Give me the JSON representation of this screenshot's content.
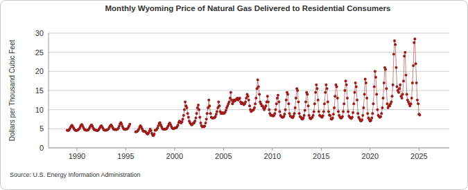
{
  "chart_data": {
    "type": "line",
    "title": "Monthly Wyoming Price of Natural Gas Delivered to Residential Consumers",
    "y_label": "Dollars per Thousand Cubic Feet",
    "source": "Source: U.S. Energy Information Administration",
    "color": "#9b1c1c",
    "marker": "circle",
    "grid": true,
    "xlim": [
      1987.1,
      2028.1
    ],
    "xticks": [
      1990,
      1995,
      2000,
      2005,
      2010,
      2015,
      2020,
      2025
    ],
    "ylim": [
      0,
      30
    ],
    "yticks": [
      0,
      5,
      10,
      15,
      20,
      25,
      30
    ],
    "x": [
      1989.0,
      1989.08,
      1989.17,
      1989.25,
      1989.33,
      1989.42,
      1989.5,
      1989.58,
      1989.67,
      1989.75,
      1989.83,
      1989.92,
      1990.0,
      1990.08,
      1990.17,
      1990.25,
      1990.33,
      1990.42,
      1990.5,
      1990.58,
      1990.67,
      1990.75,
      1990.83,
      1990.92,
      1991.0,
      1991.08,
      1991.17,
      1991.25,
      1991.33,
      1991.42,
      1991.5,
      1991.58,
      1991.67,
      1991.75,
      1991.83,
      1991.92,
      1992.0,
      1992.08,
      1992.17,
      1992.25,
      1992.33,
      1992.42,
      1992.5,
      1992.58,
      1992.67,
      1992.75,
      1992.83,
      1992.92,
      1993.0,
      1993.08,
      1993.17,
      1993.25,
      1993.33,
      1993.42,
      1993.5,
      1993.58,
      1993.67,
      1993.75,
      1993.83,
      1993.92,
      1994.0,
      1994.08,
      1994.17,
      1994.25,
      1994.33,
      1994.42,
      1994.5,
      1994.58,
      1994.67,
      1994.75,
      1994.83,
      1994.92,
      1995.0,
      1995.08,
      1995.17,
      1995.25,
      1995.33,
      1995.42,
      1995.5,
      1995.58,
      1995.67,
      1995.75,
      1995.83,
      1995.92,
      1996.0,
      1996.08,
      1996.17,
      1996.25,
      1996.33,
      1996.42,
      1996.5,
      1996.58,
      1996.67,
      1996.75,
      1996.83,
      1996.92,
      1997.0,
      1997.08,
      1997.17,
      1997.25,
      1997.33,
      1997.42,
      1997.5,
      1997.58,
      1997.67,
      1997.75,
      1997.83,
      1997.92,
      1998.0,
      1998.08,
      1998.17,
      1998.25,
      1998.33,
      1998.42,
      1998.5,
      1998.58,
      1998.67,
      1998.75,
      1998.83,
      1998.92,
      1999.0,
      1999.08,
      1999.17,
      1999.25,
      1999.33,
      1999.42,
      1999.5,
      1999.58,
      1999.67,
      1999.75,
      1999.83,
      1999.92,
      2000.0,
      2000.08,
      2000.17,
      2000.25,
      2000.33,
      2000.42,
      2000.5,
      2000.58,
      2000.67,
      2000.75,
      2000.83,
      2000.92,
      2001.0,
      2001.08,
      2001.17,
      2001.25,
      2001.33,
      2001.42,
      2001.5,
      2001.58,
      2001.67,
      2001.75,
      2001.83,
      2001.92,
      2002.0,
      2002.08,
      2002.17,
      2002.25,
      2002.33,
      2002.42,
      2002.5,
      2002.58,
      2002.67,
      2002.75,
      2002.83,
      2002.92,
      2003.0,
      2003.08,
      2003.17,
      2003.25,
      2003.33,
      2003.42,
      2003.5,
      2003.58,
      2003.67,
      2003.75,
      2003.83,
      2003.92,
      2004.0,
      2004.08,
      2004.17,
      2004.25,
      2004.33,
      2004.42,
      2004.5,
      2004.58,
      2004.67,
      2004.75,
      2004.83,
      2004.92,
      2005.0,
      2005.08,
      2005.17,
      2005.25,
      2005.33,
      2005.42,
      2005.5,
      2005.58,
      2005.67,
      2005.75,
      2005.83,
      2005.92,
      2006.0,
      2006.08,
      2006.17,
      2006.25,
      2006.33,
      2006.42,
      2006.5,
      2006.58,
      2006.67,
      2006.75,
      2006.83,
      2006.92,
      2007.0,
      2007.08,
      2007.17,
      2007.25,
      2007.33,
      2007.42,
      2007.5,
      2007.58,
      2007.67,
      2007.75,
      2007.83,
      2007.92,
      2008.0,
      2008.08,
      2008.17,
      2008.25,
      2008.33,
      2008.42,
      2008.5,
      2008.58,
      2008.67,
      2008.75,
      2008.83,
      2008.92,
      2009.0,
      2009.08,
      2009.17,
      2009.25,
      2009.33,
      2009.42,
      2009.5,
      2009.58,
      2009.67,
      2009.75,
      2009.83,
      2009.92,
      2010.0,
      2010.08,
      2010.17,
      2010.25,
      2010.33,
      2010.42,
      2010.5,
      2010.58,
      2010.67,
      2010.75,
      2010.83,
      2010.92,
      2011.0,
      2011.08,
      2011.17,
      2011.25,
      2011.33,
      2011.42,
      2011.5,
      2011.58,
      2011.67,
      2011.75,
      2011.83,
      2011.92,
      2012.0,
      2012.08,
      2012.17,
      2012.25,
      2012.33,
      2012.42,
      2012.5,
      2012.58,
      2012.67,
      2012.75,
      2012.83,
      2012.92,
      2013.0,
      2013.08,
      2013.17,
      2013.25,
      2013.33,
      2013.42,
      2013.5,
      2013.58,
      2013.67,
      2013.75,
      2013.83,
      2013.92,
      2014.0,
      2014.08,
      2014.17,
      2014.25,
      2014.33,
      2014.42,
      2014.5,
      2014.58,
      2014.67,
      2014.75,
      2014.83,
      2014.92,
      2015.0,
      2015.08,
      2015.17,
      2015.25,
      2015.33,
      2015.42,
      2015.5,
      2015.58,
      2015.67,
      2015.75,
      2015.83,
      2015.92,
      2016.0,
      2016.08,
      2016.17,
      2016.25,
      2016.33,
      2016.42,
      2016.5,
      2016.58,
      2016.67,
      2016.75,
      2016.83,
      2016.92,
      2017.0,
      2017.08,
      2017.17,
      2017.25,
      2017.33,
      2017.42,
      2017.5,
      2017.58,
      2017.67,
      2017.75,
      2017.83,
      2017.92,
      2018.0,
      2018.08,
      2018.17,
      2018.25,
      2018.33,
      2018.42,
      2018.5,
      2018.58,
      2018.67,
      2018.75,
      2018.83,
      2018.92,
      2019.0,
      2019.08,
      2019.17,
      2019.25,
      2019.33,
      2019.42,
      2019.5,
      2019.58,
      2019.67,
      2019.75,
      2019.83,
      2019.92,
      2020.0,
      2020.08,
      2020.17,
      2020.25,
      2020.33,
      2020.42,
      2020.5,
      2020.58,
      2020.67,
      2020.75,
      2020.83,
      2020.92,
      2021.0,
      2021.08,
      2021.17,
      2021.25,
      2021.33,
      2021.42,
      2021.5,
      2021.58,
      2021.67,
      2021.75,
      2021.83,
      2021.92,
      2022.0,
      2022.08,
      2022.17,
      2022.25,
      2022.33,
      2022.42,
      2022.5,
      2022.58,
      2022.67,
      2022.75,
      2022.83,
      2022.92,
      2023.0,
      2023.08,
      2023.17,
      2023.25,
      2023.33,
      2023.42,
      2023.5,
      2023.58,
      2023.67,
      2023.75,
      2023.83,
      2023.92,
      2024.0,
      2024.08,
      2024.17,
      2024.25,
      2024.33,
      2024.42,
      2024.5,
      2024.58,
      2024.67,
      2024.75,
      2024.83,
      2024.92,
      2025.0,
      2025.08
    ],
    "values": [
      4.6,
      4.5,
      4.6,
      4.9,
      5.3,
      5.7,
      5.9,
      5.6,
      5.2,
      4.8,
      4.6,
      4.5,
      4.6,
      4.6,
      4.8,
      5.0,
      5.4,
      5.9,
      6.1,
      5.8,
      5.3,
      4.9,
      4.7,
      4.6,
      4.6,
      4.6,
      4.7,
      5.0,
      5.4,
      5.8,
      6.0,
      5.7,
      5.2,
      4.8,
      4.7,
      4.7,
      4.5,
      4.5,
      4.6,
      4.8,
      5.2,
      5.6,
      5.8,
      5.5,
      5.1,
      4.7,
      4.6,
      4.6,
      4.6,
      4.7,
      4.8,
      5.0,
      5.4,
      5.8,
      6.0,
      5.7,
      5.3,
      4.9,
      4.8,
      4.8,
      4.8,
      4.8,
      4.9,
      5.2,
      5.7,
      6.3,
      6.6,
      6.2,
      5.6,
      5.1,
      4.9,
      4.8,
      4.9,
      4.9,
      5.0,
      5.3,
      5.7,
      6.2,
      null,
      null,
      null,
      null,
      null,
      null,
      4.2,
      4.2,
      4.3,
      4.5,
      4.9,
      5.4,
      5.8,
      5.5,
      5.0,
      4.5,
      4.3,
      4.3,
      4.3,
      4.0,
      3.7,
      3.6,
      3.9,
      4.4,
      4.9,
      4.5,
      3.8,
      3.3,
      3.2,
      3.6,
      4.6,
      4.6,
      4.8,
      5.2,
      5.8,
      6.4,
      6.6,
      6.0,
      5.5,
      5.0,
      4.9,
      4.9,
      4.9,
      4.9,
      5.0,
      5.3,
      5.7,
      6.2,
      6.5,
      6.1,
      5.6,
      5.2,
      5.0,
      5.0,
      5.2,
      5.2,
      5.3,
      5.5,
      5.9,
      6.6,
      7.0,
      6.8,
      6.5,
      6.8,
      7.5,
      8.5,
      10.0,
      12.0,
      11.0,
      10.5,
      9.0,
      8.0,
      7.0,
      6.5,
      6.2,
      6.0,
      6.2,
      6.5,
      6.5,
      7.0,
      7.8,
      9.0,
      10.5,
      11.2,
      10.0,
      8.0,
      6.5,
      5.8,
      5.5,
      5.6,
      5.5,
      5.7,
      6.5,
      7.5,
      9.0,
      10.5,
      12.5,
      11.0,
      9.0,
      8.0,
      7.8,
      7.8,
      7.8,
      7.9,
      8.2,
      8.8,
      9.5,
      10.5,
      12.0,
      11.0,
      9.5,
      9.0,
      9.0,
      9.2,
      9.0,
      9.1,
      9.3,
      9.8,
      10.5,
      11.0,
      11.5,
      12.0,
      13.0,
      14.5,
      12.5,
      11.5,
      12.0,
      12.5,
      12.3,
      12.5,
      12.8,
      13.0,
      12.5,
      12.8,
      13.0,
      12.0,
      11.5,
      11.8,
      11.5,
      11.3,
      11.5,
      12.0,
      13.0,
      14.0,
      13.5,
      12.5,
      11.0,
      10.0,
      9.5,
      9.8,
      9.8,
      10.0,
      10.5,
      11.5,
      13.0,
      15.5,
      17.8,
      16.0,
      14.0,
      12.0,
      11.5,
      11.0,
      11.0,
      10.5,
      10.0,
      10.5,
      11.0,
      12.0,
      13.5,
      12.0,
      10.0,
      9.0,
      8.5,
      8.5,
      8.5,
      8.3,
      8.5,
      9.0,
      10.0,
      11.5,
      13.0,
      13.8,
      12.0,
      9.5,
      8.5,
      8.2,
      8.0,
      8.0,
      8.2,
      8.8,
      10.0,
      12.5,
      14.5,
      14.0,
      11.5,
      9.0,
      8.3,
      8.2,
      8.0,
      7.9,
      8.3,
      9.0,
      10.5,
      13.0,
      15.5,
      15.0,
      12.0,
      9.0,
      8.2,
      8.0,
      7.6,
      7.5,
      7.8,
      8.5,
      9.8,
      12.0,
      14.5,
      14.0,
      11.0,
      8.5,
      7.8,
      7.6,
      7.8,
      8.0,
      8.5,
      9.5,
      11.5,
      14.5,
      16.5,
      15.5,
      12.5,
      9.5,
      8.5,
      8.3,
      8.2,
      8.0,
      8.4,
      9.5,
      11.5,
      14.5,
      16.5,
      15.5,
      12.0,
      9.5,
      8.6,
      8.4,
      7.6,
      7.5,
      7.8,
      8.8,
      10.5,
      13.5,
      16.5,
      16.0,
      13.0,
      9.5,
      8.5,
      8.0,
      7.8,
      7.8,
      8.2,
      9.5,
      11.5,
      15.0,
      17.5,
      16.5,
      13.0,
      9.5,
      8.3,
      8.0,
      7.8,
      7.7,
      8.0,
      9.2,
      11.5,
      14.5,
      17.0,
      16.0,
      12.5,
      9.0,
      8.0,
      7.6,
      7.2,
      7.0,
      7.3,
      8.5,
      10.5,
      14.0,
      18.0,
      17.0,
      13.0,
      9.0,
      7.8,
      7.4,
      7.0,
      7.2,
      7.8,
      9.0,
      11.5,
      16.0,
      20.0,
      18.5,
      14.0,
      10.0,
      8.5,
      8.2,
      8.0,
      8.2,
      9.0,
      10.5,
      13.0,
      17.0,
      21.0,
      20.5,
      15.5,
      11.5,
      10.5,
      11.0,
      11.0,
      11.5,
      12.0,
      13.5,
      16.5,
      24.5,
      28.0,
      27.0,
      21.0,
      16.0,
      15.0,
      14.5,
      15.5,
      16.5,
      13.5,
      13.0,
      14.0,
      17.5,
      24.0,
      25.0,
      19.0,
      14.0,
      12.5,
      12.0,
      11.5,
      11.0,
      11.5,
      13.0,
      17.0,
      21.5,
      27.5,
      28.5,
      22.0,
      17.0,
      12.5,
      11.5,
      8.8,
      8.6
    ]
  }
}
